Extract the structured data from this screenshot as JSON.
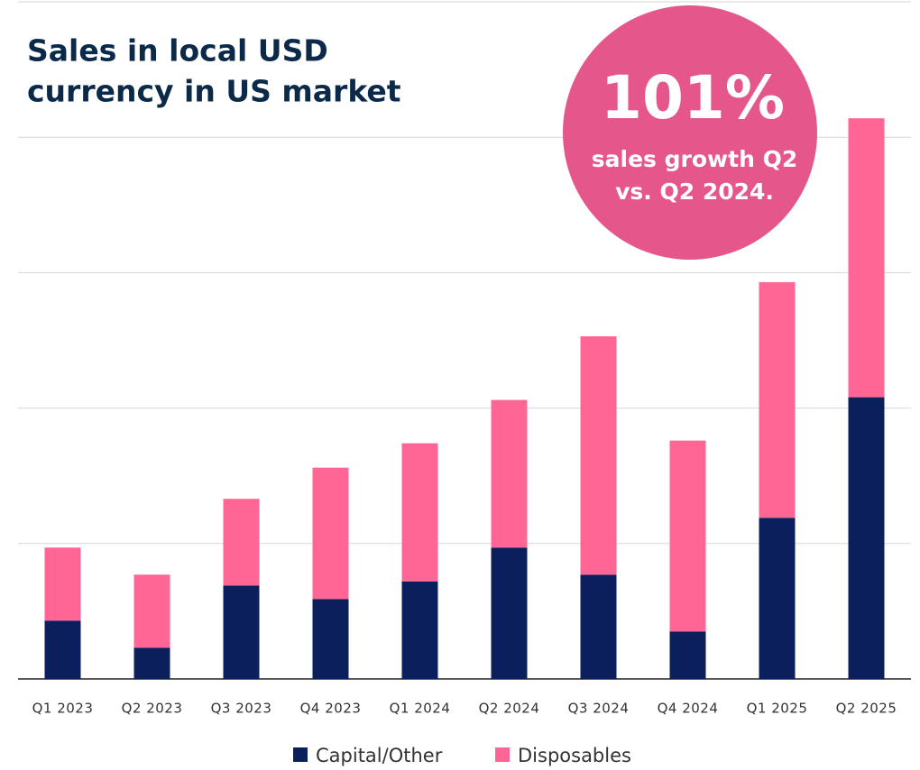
{
  "chart_data": {
    "type": "stacked_bar",
    "title": [
      "Sales in local USD",
      "currency in US market"
    ],
    "annotation": {
      "value": "101%",
      "text": [
        "sales growth Q2",
        "vs. Q2 2024."
      ]
    },
    "categories": [
      "Q1 2023",
      "Q2 2023",
      "Q3 2023",
      "Q4 2023",
      "Q1 2024",
      "Q2 2024",
      "Q3 2024",
      "Q4 2024",
      "Q1 2025",
      "Q2 2025"
    ],
    "series": [
      {
        "name": "Capital/Other",
        "color": "#0b1f5c",
        "values": [
          0.43,
          0.23,
          0.69,
          0.59,
          0.72,
          0.97,
          0.77,
          0.35,
          1.19,
          2.08
        ]
      },
      {
        "name": "Disposables",
        "color": "#ff6696",
        "values": [
          0.54,
          0.54,
          0.64,
          0.97,
          1.02,
          1.09,
          1.76,
          1.41,
          1.74,
          2.06
        ]
      }
    ],
    "ylim": [
      0,
      5
    ],
    "yticks": [
      0,
      1,
      2,
      3,
      4,
      5
    ],
    "grid": true,
    "legend": "bottom"
  }
}
